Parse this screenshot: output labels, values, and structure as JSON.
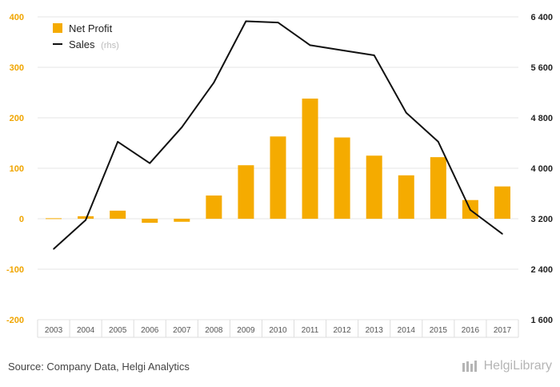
{
  "chart_data": {
    "type": "bar",
    "categories": [
      "2003",
      "2004",
      "2005",
      "2006",
      "2007",
      "2008",
      "2009",
      "2010",
      "2011",
      "2012",
      "2013",
      "2014",
      "2015",
      "2016",
      "2017"
    ],
    "series": [
      {
        "name": "Net Profit",
        "type": "bar",
        "axis": "left",
        "color": "#f5ab00",
        "values": [
          1,
          5,
          16,
          -8,
          -6,
          46,
          106,
          163,
          238,
          161,
          125,
          86,
          122,
          37,
          64
        ]
      },
      {
        "name": "Sales",
        "suffix": "(rhs)",
        "type": "line",
        "axis": "right",
        "color": "#111111",
        "values": [
          2720,
          3180,
          4420,
          4080,
          4650,
          5360,
          6330,
          6310,
          5950,
          5870,
          5790,
          4880,
          4420,
          3340,
          2960
        ]
      }
    ],
    "y_left": {
      "min": -200,
      "max": 400,
      "ticks": [
        -200,
        -100,
        0,
        100,
        200,
        300,
        400
      ],
      "tick_labels": [
        "-200",
        "-100",
        "0",
        "100",
        "200",
        "300",
        "400"
      ]
    },
    "y_right": {
      "min": 1600,
      "max": 6400,
      "ticks": [
        1600,
        2400,
        3200,
        4000,
        4800,
        5600,
        6400
      ],
      "tick_labels": [
        "1 600",
        "2 400",
        "3 200",
        "4 000",
        "4 800",
        "5 600",
        "6 400"
      ]
    },
    "grid": true,
    "legend": "top-left"
  },
  "footer": {
    "source": "Source: Company Data, Helgi Analytics",
    "brand": "HelgiLibrary"
  }
}
